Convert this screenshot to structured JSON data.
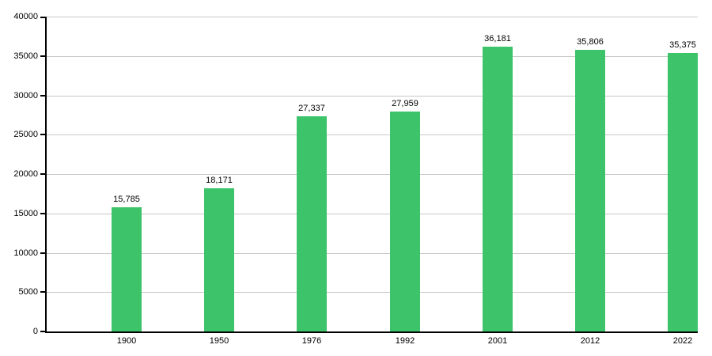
{
  "chart_data": {
    "type": "bar",
    "title": "",
    "xlabel": "",
    "ylabel": "",
    "categories": [
      "1900",
      "1950",
      "1976",
      "1992",
      "2001",
      "2012",
      "2022"
    ],
    "values": [
      15785,
      18171,
      27337,
      27959,
      36181,
      35806,
      35375
    ],
    "value_labels": [
      "15,785",
      "18,171",
      "27,337",
      "27,959",
      "36,181",
      "35,806",
      "35,375"
    ],
    "ylim": [
      0,
      40000
    ],
    "ytick_step": 5000,
    "ytick_labels": [
      "0",
      "5000",
      "10000",
      "15000",
      "20000",
      "25000",
      "30000",
      "35000",
      "40000"
    ],
    "grid": "horizontal",
    "legend": "none",
    "bar_color": "#3dc36a",
    "axis_color": "#000000",
    "gridline_color": "#c8c8c8",
    "text_color": "#000000",
    "background_color": "#ffffff"
  }
}
